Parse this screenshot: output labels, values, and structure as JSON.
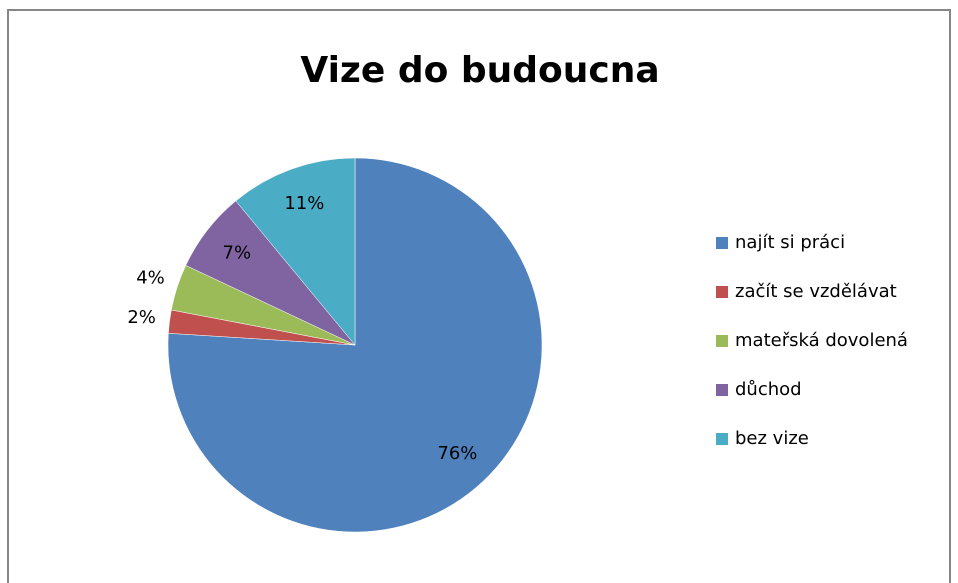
{
  "chart_data": {
    "type": "pie",
    "title": "Vize do budoucna",
    "categories": [
      "najít si práci",
      "začít se vzdělávat",
      "mateřská dovolená",
      "důchod",
      "bez vize"
    ],
    "values": [
      76,
      2,
      4,
      7,
      11
    ],
    "value_labels": [
      "76%",
      "2%",
      "4%",
      "7%",
      "11%"
    ],
    "colors": [
      "#4f81bd",
      "#c0504d",
      "#9bbb59",
      "#8064a2",
      "#4bacc6"
    ],
    "legend": "right"
  }
}
